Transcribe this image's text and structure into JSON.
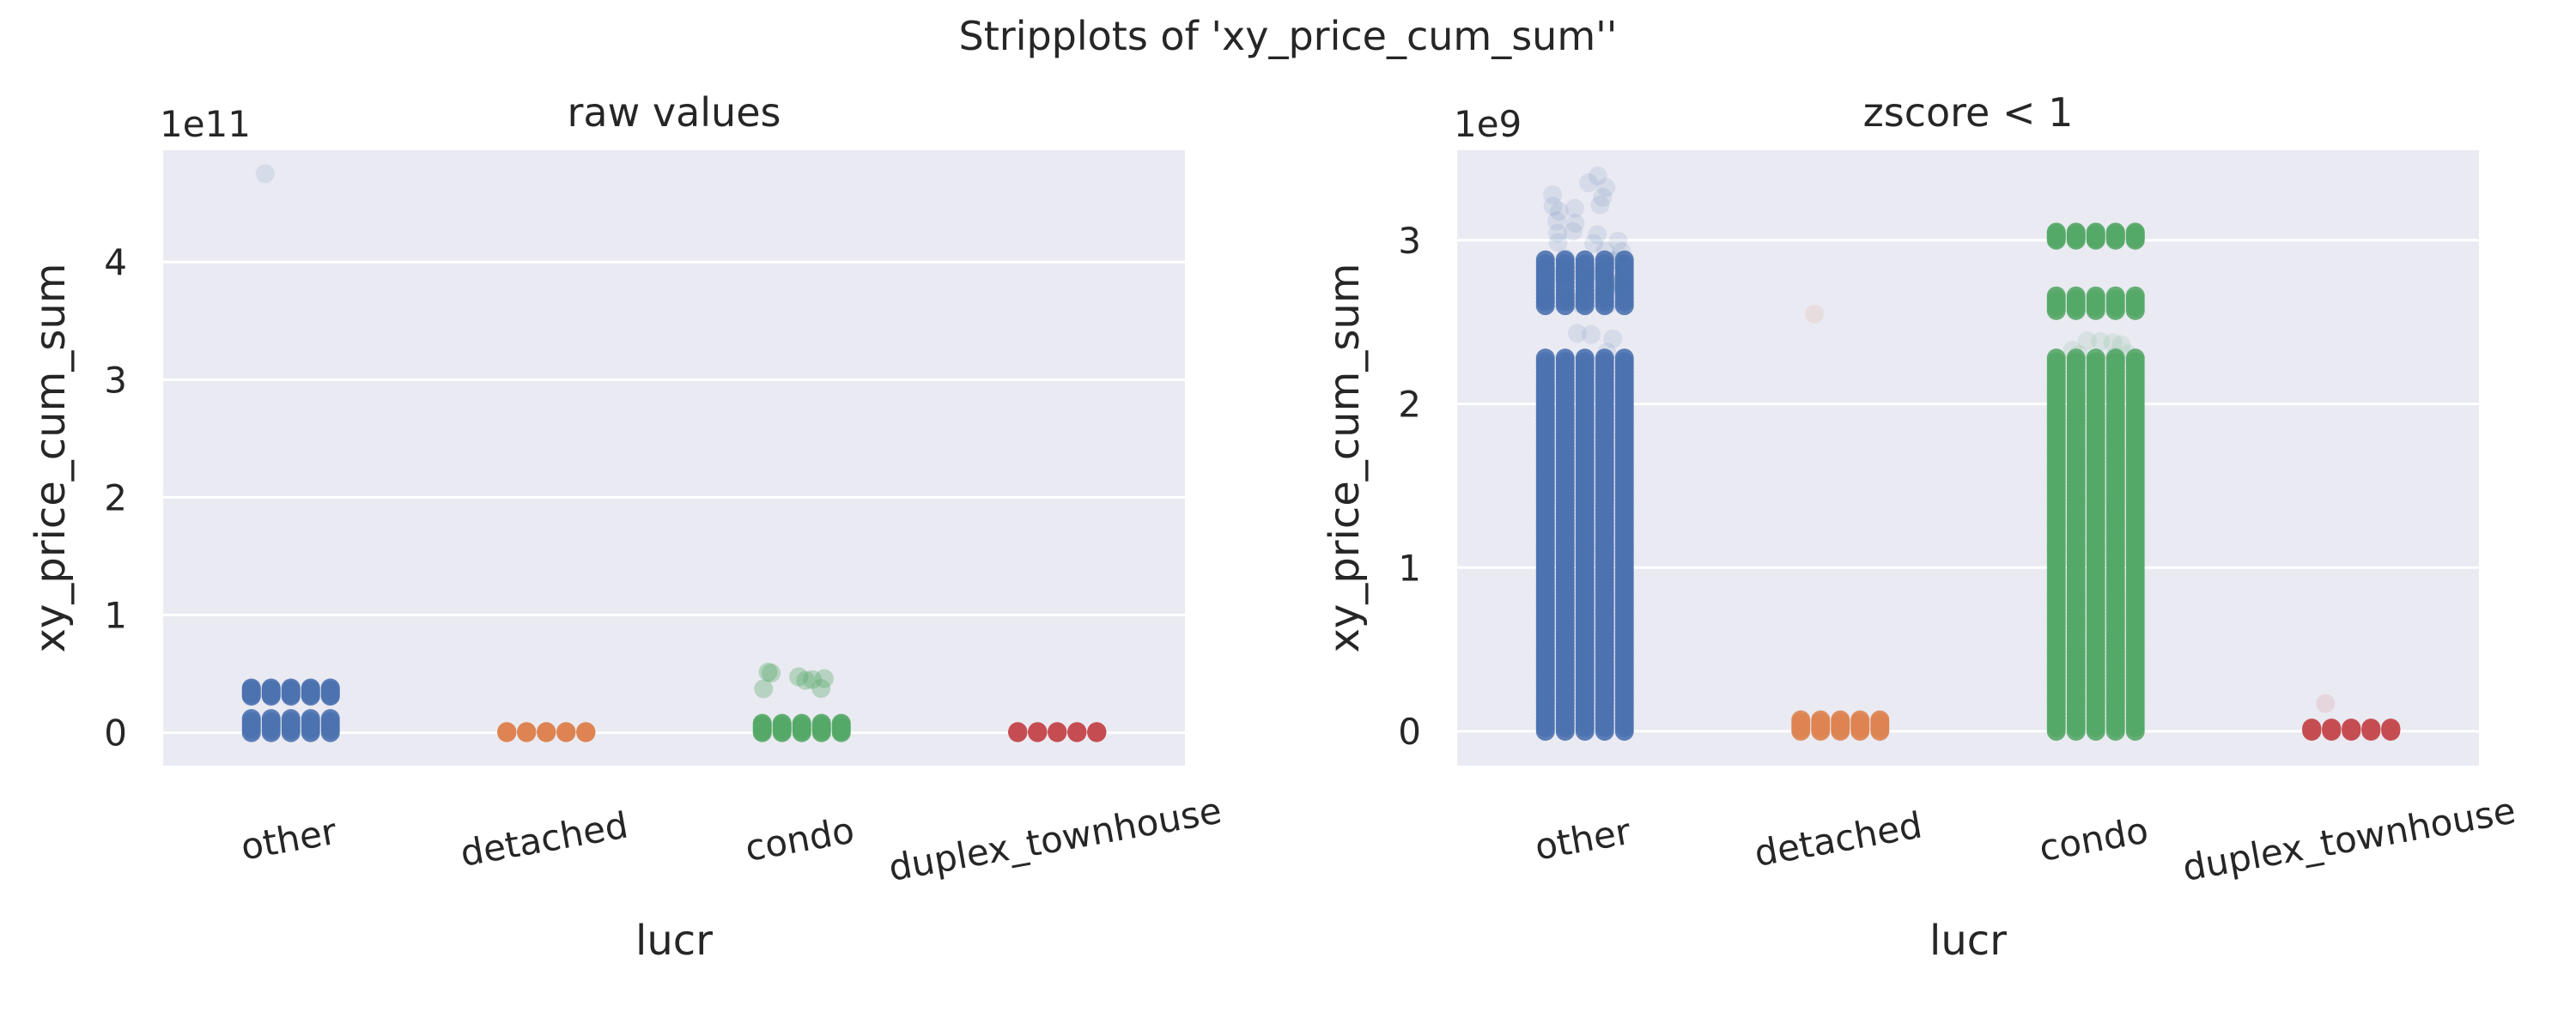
{
  "chart_data": {
    "suptitle": "Stripplots of 'xy_price_cum_sum''",
    "style": {
      "background": "#eaeaf2",
      "grid": true,
      "grid_color": "#ffffff"
    },
    "panels": [
      {
        "type": "stripplot",
        "title": "raw values",
        "xlabel": "lucr",
        "ylabel": "xy_price_cum_sum",
        "scale_offset_label": "1e11",
        "categories": [
          "other",
          "detached",
          "condo",
          "duplex_townhouse"
        ],
        "colors": [
          "#4c72b0",
          "#dd8452",
          "#55a868",
          "#c44e52"
        ],
        "yticks": [
          0,
          1,
          2,
          3,
          4
        ],
        "ylim": [
          -0.28,
          4.95
        ],
        "series": [
          {
            "category": "other",
            "bands": [
              {
                "from": 0.0,
                "to": 0.12,
                "density": "solid"
              },
              {
                "from": 0.31,
                "to": 0.38,
                "density": "solid"
              }
            ],
            "outliers": [
              4.75
            ]
          },
          {
            "category": "detached",
            "bands": [
              {
                "from": 0.0,
                "to": 0.01,
                "density": "solid"
              }
            ],
            "outliers": []
          },
          {
            "category": "condo",
            "bands": [
              {
                "from": 0.0,
                "to": 0.08,
                "density": "solid"
              },
              {
                "from": 0.37,
                "to": 0.52,
                "density": "sparse"
              }
            ],
            "outliers": []
          },
          {
            "category": "duplex_townhouse",
            "bands": [
              {
                "from": 0.0,
                "to": 0.01,
                "density": "solid"
              }
            ],
            "outliers": []
          }
        ]
      },
      {
        "type": "stripplot",
        "title": "zscore < 1",
        "xlabel": "lucr",
        "ylabel": "xy_price_cum_sum",
        "scale_offset_label": "1e9",
        "categories": [
          "other",
          "detached",
          "condo",
          "duplex_townhouse"
        ],
        "colors": [
          "#4c72b0",
          "#dd8452",
          "#55a868",
          "#c44e52"
        ],
        "yticks": [
          0,
          1,
          2,
          3
        ],
        "ylim": [
          -0.21,
          3.55
        ],
        "series": [
          {
            "category": "other",
            "bands": [
              {
                "from": 0.0,
                "to": 2.28,
                "density": "solid"
              },
              {
                "from": 2.6,
                "to": 2.88,
                "density": "solid"
              },
              {
                "from": 2.3,
                "to": 3.4,
                "density": "faint"
              }
            ],
            "outliers": []
          },
          {
            "category": "detached",
            "bands": [
              {
                "from": 0.0,
                "to": 0.07,
                "density": "solid"
              }
            ],
            "outliers": [
              2.55
            ]
          },
          {
            "category": "condo",
            "bands": [
              {
                "from": 0.0,
                "to": 2.28,
                "density": "solid"
              },
              {
                "from": 2.57,
                "to": 2.66,
                "density": "solid"
              },
              {
                "from": 3.0,
                "to": 3.05,
                "density": "solid"
              },
              {
                "from": 2.28,
                "to": 2.4,
                "density": "faint"
              }
            ],
            "outliers": []
          },
          {
            "category": "duplex_townhouse",
            "bands": [
              {
                "from": 0.0,
                "to": 0.02,
                "density": "solid"
              }
            ],
            "outliers": [
              0.17
            ]
          }
        ]
      }
    ]
  }
}
